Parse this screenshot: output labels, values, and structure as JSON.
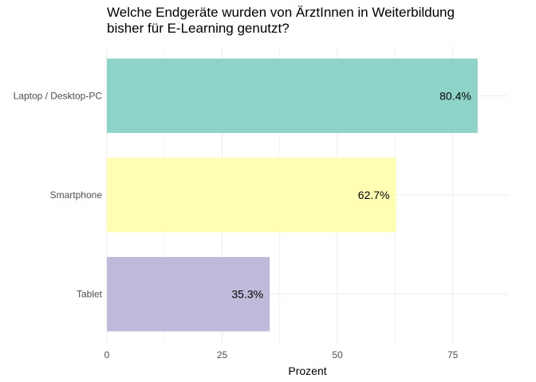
{
  "chart_data": {
    "type": "bar",
    "orientation": "horizontal",
    "title_lines": [
      "Welche Endgeräte wurden von ÄrztInnen in Weiterbildung",
      "bisher für E-Learning genutzt?"
    ],
    "categories": [
      "Laptop / Desktop-PC",
      "Smartphone",
      "Tablet"
    ],
    "values": [
      80.4,
      62.7,
      35.3
    ],
    "data_labels": [
      "80.4%",
      "62.7%",
      "35.3%"
    ],
    "colors": [
      "#8dd3c7",
      "#ffffb3",
      "#bebada"
    ],
    "xlabel": "Prozent",
    "xlim": [
      0,
      87
    ],
    "x_ticks": [
      0,
      25,
      50,
      75
    ],
    "x_tick_labels": [
      "0",
      "25",
      "50",
      "75"
    ],
    "grid": true,
    "legend": false
  }
}
